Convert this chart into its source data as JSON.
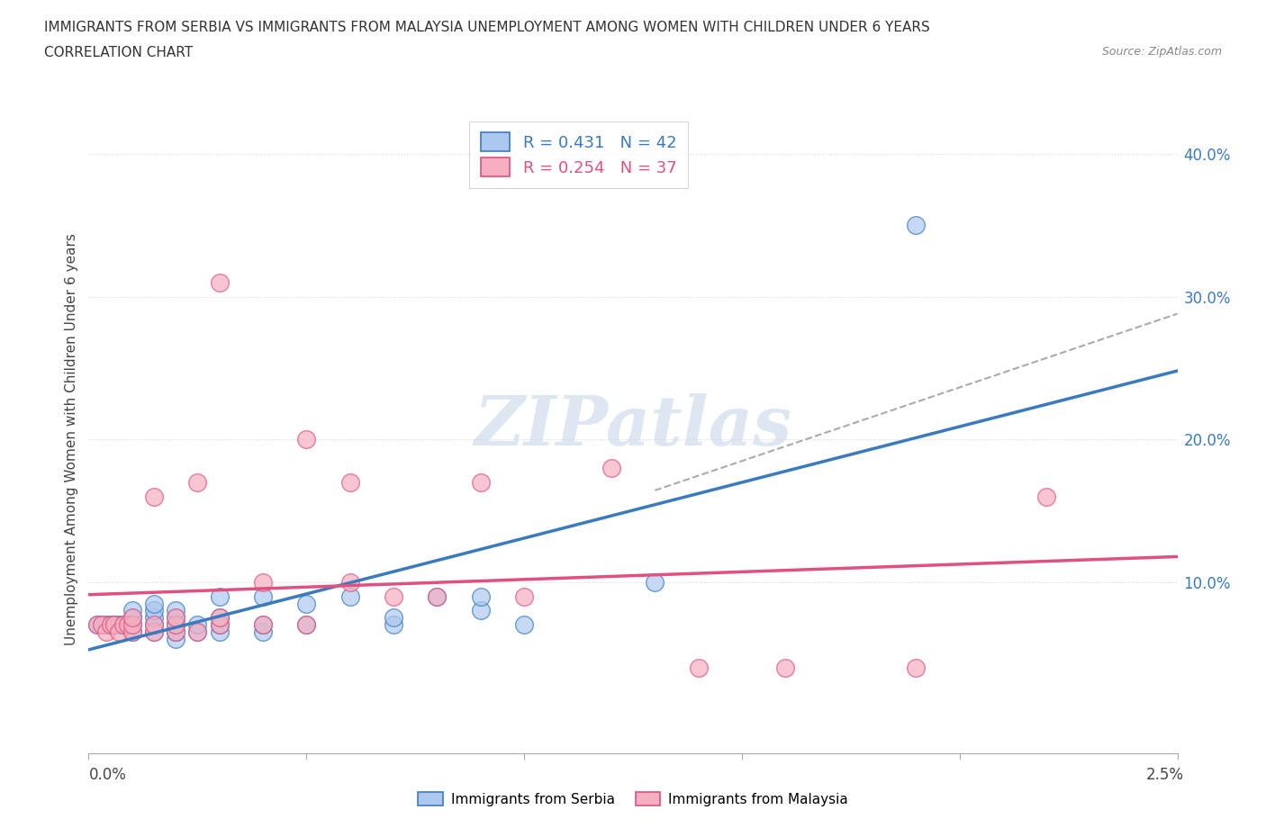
{
  "title_line1": "IMMIGRANTS FROM SERBIA VS IMMIGRANTS FROM MALAYSIA UNEMPLOYMENT AMONG WOMEN WITH CHILDREN UNDER 6 YEARS",
  "title_line2": "CORRELATION CHART",
  "source": "Source: ZipAtlas.com",
  "ylabel": "Unemployment Among Women with Children Under 6 years",
  "xlim": [
    0.0,
    0.025
  ],
  "ylim": [
    -0.02,
    0.42
  ],
  "serbia_R": 0.431,
  "serbia_N": 42,
  "malaysia_R": 0.254,
  "malaysia_N": 37,
  "serbia_color": "#adc8f0",
  "malaysia_color": "#f5afc0",
  "serbia_line_color": "#3a7abf",
  "malaysia_line_color": "#e05080",
  "grid_color": "#d8d8d8",
  "bg_color": "#ffffff",
  "serbia_x": [
    0.0002,
    0.0003,
    0.0004,
    0.0005,
    0.0006,
    0.0007,
    0.0008,
    0.0009,
    0.001,
    0.001,
    0.001,
    0.001,
    0.0015,
    0.0015,
    0.0015,
    0.0015,
    0.0015,
    0.002,
    0.002,
    0.002,
    0.002,
    0.002,
    0.0025,
    0.0025,
    0.003,
    0.003,
    0.003,
    0.003,
    0.004,
    0.004,
    0.004,
    0.005,
    0.005,
    0.006,
    0.007,
    0.007,
    0.008,
    0.009,
    0.009,
    0.01,
    0.013,
    0.019
  ],
  "serbia_y": [
    0.07,
    0.07,
    0.07,
    0.07,
    0.07,
    0.07,
    0.07,
    0.07,
    0.065,
    0.07,
    0.075,
    0.08,
    0.065,
    0.07,
    0.075,
    0.08,
    0.085,
    0.06,
    0.065,
    0.07,
    0.075,
    0.08,
    0.065,
    0.07,
    0.065,
    0.07,
    0.075,
    0.09,
    0.065,
    0.07,
    0.09,
    0.07,
    0.085,
    0.09,
    0.07,
    0.075,
    0.09,
    0.08,
    0.09,
    0.07,
    0.1,
    0.35
  ],
  "malaysia_x": [
    0.0002,
    0.0003,
    0.0004,
    0.0005,
    0.0006,
    0.0007,
    0.0008,
    0.0009,
    0.001,
    0.001,
    0.001,
    0.0015,
    0.0015,
    0.0015,
    0.002,
    0.002,
    0.002,
    0.0025,
    0.0025,
    0.003,
    0.003,
    0.003,
    0.004,
    0.004,
    0.005,
    0.005,
    0.006,
    0.006,
    0.007,
    0.008,
    0.009,
    0.01,
    0.012,
    0.014,
    0.016,
    0.019,
    0.022
  ],
  "malaysia_y": [
    0.07,
    0.07,
    0.065,
    0.07,
    0.07,
    0.065,
    0.07,
    0.07,
    0.065,
    0.07,
    0.075,
    0.065,
    0.07,
    0.16,
    0.065,
    0.07,
    0.075,
    0.065,
    0.17,
    0.07,
    0.075,
    0.31,
    0.07,
    0.1,
    0.07,
    0.2,
    0.1,
    0.17,
    0.09,
    0.09,
    0.17,
    0.09,
    0.18,
    0.04,
    0.04,
    0.04,
    0.16
  ],
  "watermark": "ZIPatlas",
  "title_fontsize": 11,
  "legend_fontsize": 13,
  "yticks": [
    0.0,
    0.1,
    0.2,
    0.3,
    0.4
  ],
  "ytick_labels": [
    "",
    "10.0%",
    "20.0%",
    "30.0%",
    "40.0%"
  ]
}
